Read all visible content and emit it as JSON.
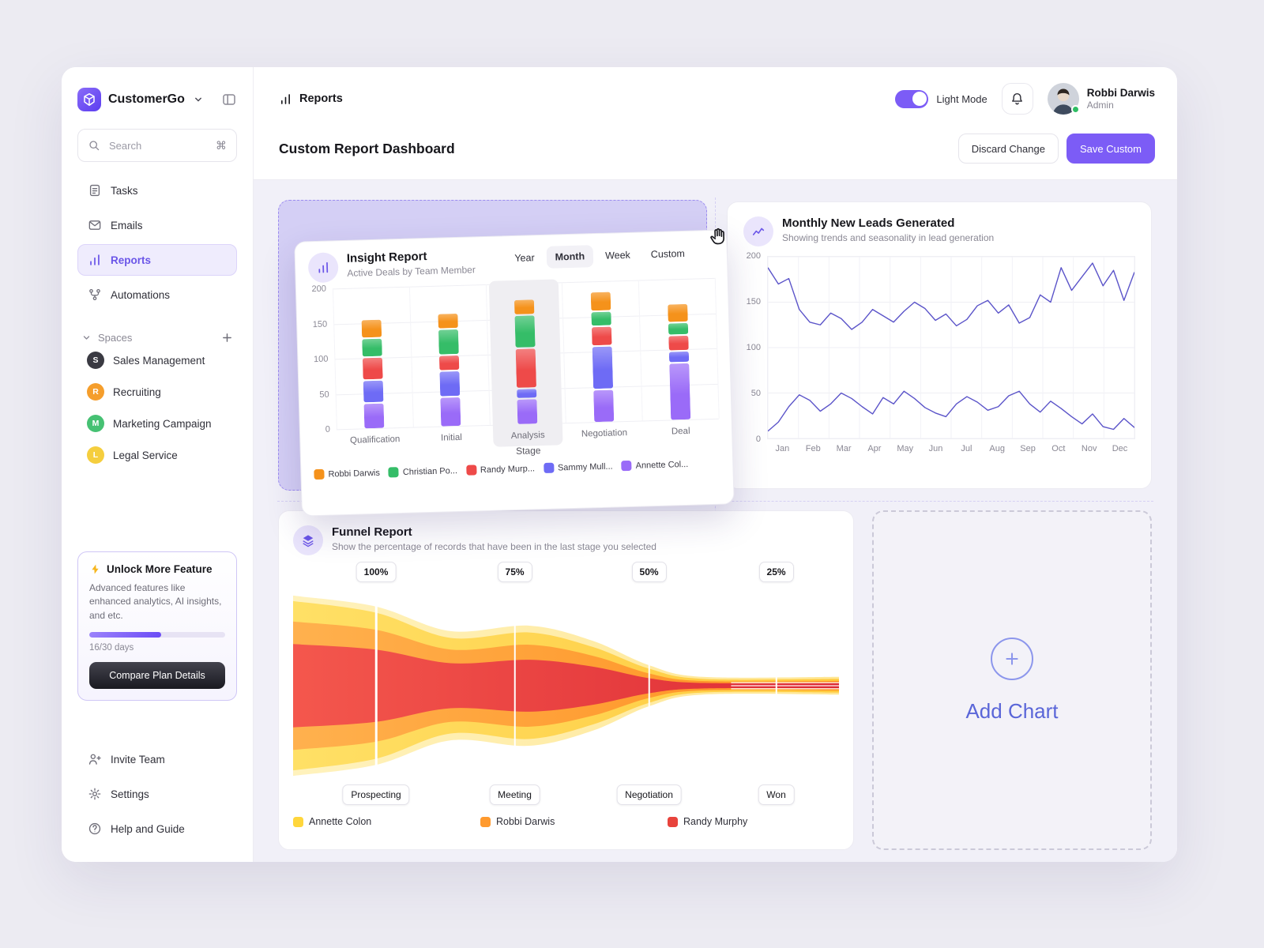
{
  "app": {
    "name": "CustomerGo"
  },
  "accent": {
    "primary": "#7C5CF6"
  },
  "sidebar": {
    "search": {
      "placeholder": "Search",
      "shortcut": "⌘"
    },
    "nav": [
      {
        "id": "tasks",
        "label": "Tasks",
        "active": false
      },
      {
        "id": "emails",
        "label": "Emails",
        "active": false
      },
      {
        "id": "reports",
        "label": "Reports",
        "active": true
      },
      {
        "id": "automations",
        "label": "Automations",
        "active": false
      }
    ],
    "spaces": {
      "label": "Spaces",
      "items": [
        {
          "initial": "S",
          "label": "Sales Management",
          "color": "#3A3A42"
        },
        {
          "initial": "R",
          "label": "Recruiting",
          "color": "#F59E2C"
        },
        {
          "initial": "M",
          "label": "Marketing Campaign",
          "color": "#46C173"
        },
        {
          "initial": "L",
          "label": "Legal Service",
          "color": "#F5CE3E"
        }
      ]
    },
    "promo": {
      "title": "Unlock More Feature",
      "description": "Advanced features like enhanced analytics, AI insights, and etc.",
      "progress_pct": 53,
      "days_label": "16/30 days",
      "button_label": "Compare Plan Details"
    },
    "footer": [
      {
        "id": "invite",
        "label": "Invite Team"
      },
      {
        "id": "settings",
        "label": "Settings"
      },
      {
        "id": "help",
        "label": "Help and Guide"
      }
    ]
  },
  "header": {
    "breadcrumb": "Reports",
    "light_mode_label": "Light Mode",
    "user": {
      "name": "Robbi Darwis",
      "role": "Admin"
    }
  },
  "toolbar": {
    "title": "Custom Report Dashboard",
    "discard_label": "Discard Change",
    "save_label": "Save Custom"
  },
  "insight_report": {
    "title": "Insight Report",
    "subtitle": "Active Deals by Team Member",
    "tabs": [
      {
        "label": "Year",
        "active": false
      },
      {
        "label": "Month",
        "active": true
      },
      {
        "label": "Week",
        "active": false
      },
      {
        "label": "Custom",
        "active": false
      }
    ],
    "chart_data": {
      "type": "bar",
      "stacked": true,
      "categories": [
        "Qualification",
        "Initial",
        "Analysis",
        "Negotiation",
        "Deal"
      ],
      "series": [
        {
          "name": "Robbi Darwis",
          "color": "#F5921B",
          "values": [
            25,
            20,
            20,
            25,
            25
          ]
        },
        {
          "name": "Christian Po...",
          "color": "#35BD68",
          "values": [
            25,
            35,
            45,
            20,
            15
          ]
        },
        {
          "name": "Randy Murp...",
          "color": "#EE4A49",
          "values": [
            30,
            20,
            55,
            25,
            20
          ]
        },
        {
          "name": "Sammy Mull...",
          "color": "#6E6BF5",
          "values": [
            30,
            35,
            12,
            60,
            15
          ]
        },
        {
          "name": "Annette Col...",
          "color": "#9A6BF8",
          "values": [
            35,
            40,
            35,
            45,
            80
          ]
        }
      ],
      "xlabel": "Stage",
      "ylim": [
        0,
        200
      ],
      "yticks": [
        200,
        150,
        100,
        50,
        0
      ],
      "highlight_category": "Analysis"
    }
  },
  "leads_report": {
    "title": "Monthly New Leads Generated",
    "subtitle": "Showing trends and seasonality in lead generation",
    "chart_data": {
      "type": "line",
      "months": [
        "Jan",
        "Feb",
        "Mar",
        "Apr",
        "May",
        "Jun",
        "Jul",
        "Aug",
        "Sep",
        "Oct",
        "Nov",
        "Dec"
      ],
      "ylim": [
        0,
        200
      ],
      "yticks": [
        200,
        150,
        100,
        50,
        0
      ],
      "line_color": "#5B54C9",
      "series": [
        {
          "values": [
            188,
            170,
            176,
            142,
            128,
            125,
            138,
            132,
            120,
            128,
            142,
            135,
            128,
            140,
            150,
            143,
            130,
            137,
            124,
            131,
            146,
            152,
            138,
            147,
            127,
            133,
            158,
            150,
            188,
            163,
            178,
            193,
            168,
            185,
            152,
            183
          ]
        },
        {
          "values": [
            8,
            18,
            35,
            48,
            42,
            30,
            38,
            50,
            44,
            35,
            27,
            45,
            38,
            52,
            44,
            34,
            28,
            24,
            38,
            46,
            40,
            31,
            35,
            47,
            52,
            38,
            29,
            41,
            33,
            24,
            16,
            27,
            13,
            10,
            22,
            12
          ]
        }
      ]
    }
  },
  "funnel_report": {
    "title": "Funnel Report",
    "subtitle": "Show the percentage of records that have been in the last stage you selected",
    "chart_data": {
      "type": "area",
      "markers": [
        {
          "percent": "100%",
          "stage": "Prospecting",
          "position_pct": 15.2
        },
        {
          "percent": "75%",
          "stage": "Meeting",
          "position_pct": 40.6
        },
        {
          "percent": "50%",
          "stage": "Negotiation",
          "position_pct": 65.2
        },
        {
          "percent": "25%",
          "stage": "Won",
          "position_pct": 88.5
        }
      ],
      "legend": [
        {
          "name": "Annette Colon",
          "color": "#FFD63C"
        },
        {
          "name": "Robbi Darwis",
          "color": "#FF9A2E"
        },
        {
          "name": "Randy Murphy",
          "color": "#E8433C"
        }
      ]
    }
  },
  "add_chart": {
    "label": "Add Chart"
  }
}
